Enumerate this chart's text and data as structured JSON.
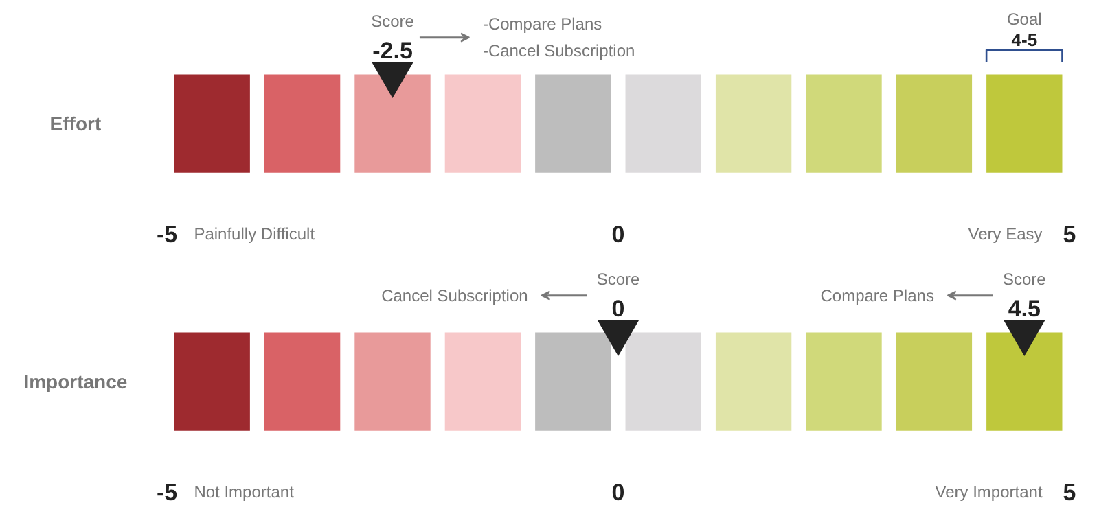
{
  "chart_data": [
    {
      "type": "other",
      "title": "Effort",
      "colors": [
        "#9e2a2f",
        "#d96266",
        "#e89a9a",
        "#f7c8c9",
        "#bdbdbd",
        "#dcdadc",
        "#e0e4a8",
        "#d0d97a",
        "#c8cf5c",
        "#bfc83c"
      ],
      "series": [
        {
          "name": "Score",
          "values": [
            -2.5
          ],
          "value_labels": [
            "-2.5"
          ]
        }
      ],
      "annotations": [
        "-5",
        "0",
        "5",
        "Painfully Difficult",
        "Very Easy",
        "-Compare Plans\n-Cancel Subscription",
        "Goal",
        "4-5"
      ]
    },
    {
      "type": "other",
      "title": "Importance",
      "colors": [
        "#9e2a2f",
        "#d96266",
        "#e89a9a",
        "#f7c8c9",
        "#bdbdbd",
        "#dcdadc",
        "#e0e4a8",
        "#d0d97a",
        "#c8cf5c",
        "#bfc83c"
      ],
      "series": [
        {
          "name": "Score",
          "values": [
            0,
            4.5
          ],
          "value_labels": [
            "0",
            "4.5"
          ]
        }
      ],
      "annotations": [
        "-5",
        "0",
        "5",
        "Not Important",
        "Very Important",
        "Cancel Subscription",
        "Compare Plans"
      ]
    }
  ]
}
